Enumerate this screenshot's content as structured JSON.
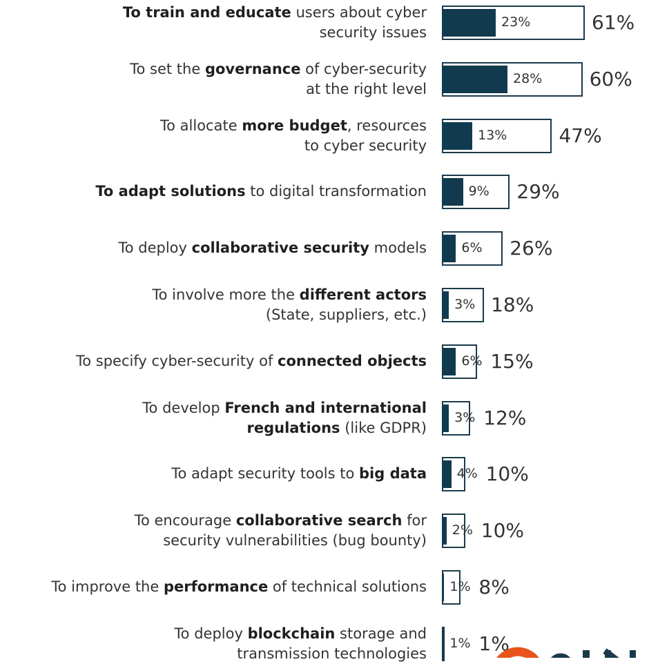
{
  "chart_data": {
    "type": "bar",
    "orientation": "horizontal",
    "categories": [
      [
        {
          "t": "To train and educate",
          "b": true
        },
        {
          "t": " users about cyber",
          "b": false
        },
        {
          "br": true
        },
        {
          "t": "security issues",
          "b": false
        }
      ],
      [
        {
          "t": "To set the ",
          "b": false
        },
        {
          "t": "governance",
          "b": true
        },
        {
          "t": " of cyber-security",
          "b": false
        },
        {
          "br": true
        },
        {
          "t": "at the right level",
          "b": false
        }
      ],
      [
        {
          "t": "To allocate ",
          "b": false
        },
        {
          "t": "more budget",
          "b": true
        },
        {
          "t": ", resources",
          "b": false
        },
        {
          "br": true
        },
        {
          "t": "to cyber security",
          "b": false
        }
      ],
      [
        {
          "t": "To adapt solutions",
          "b": true
        },
        {
          "t": " to digital transformation",
          "b": false
        }
      ],
      [
        {
          "t": "To deploy ",
          "b": false
        },
        {
          "t": "collaborative security",
          "b": true
        },
        {
          "t": " models",
          "b": false
        }
      ],
      [
        {
          "t": "To involve more the ",
          "b": false
        },
        {
          "t": "different actors",
          "b": true
        },
        {
          "br": true
        },
        {
          "t": "(State, suppliers, etc.)",
          "b": false
        }
      ],
      [
        {
          "t": "To specify cyber-security of ",
          "b": false
        },
        {
          "t": "connected objects",
          "b": true
        }
      ],
      [
        {
          "t": "To develop ",
          "b": false
        },
        {
          "t": "French and international",
          "b": true
        },
        {
          "br": true
        },
        {
          "t": "regulations",
          "b": true
        },
        {
          "t": "  (like GDPR)",
          "b": false
        }
      ],
      [
        {
          "t": "To adapt security tools to ",
          "b": false
        },
        {
          "t": "big data",
          "b": true
        }
      ],
      [
        {
          "t": "To encourage ",
          "b": false
        },
        {
          "t": "collaborative search",
          "b": true
        },
        {
          "t": " for",
          "b": false
        },
        {
          "br": true
        },
        {
          "t": "security vulnerabilities (bug bounty)",
          "b": false
        }
      ],
      [
        {
          "t": "To improve the ",
          "b": false
        },
        {
          "t": "performance",
          "b": true
        },
        {
          "t": " of technical solutions",
          "b": false
        }
      ],
      [
        {
          "t": "To deploy ",
          "b": false
        },
        {
          "t": "blockchain",
          "b": true
        },
        {
          "t": " storage and",
          "b": false
        },
        {
          "br": true
        },
        {
          "t": "transmission technologies",
          "b": false
        }
      ]
    ],
    "series": [
      {
        "values": [
          61,
          60,
          47,
          29,
          26,
          18,
          15,
          12,
          10,
          10,
          8,
          1
        ],
        "labels": [
          "61%",
          "60%",
          "47%",
          "29%",
          "26%",
          "18%",
          "15%",
          "12%",
          "10%",
          "10%",
          "8%",
          "1%"
        ]
      },
      {
        "values": [
          23,
          28,
          13,
          9,
          6,
          3,
          6,
          3,
          4,
          2,
          1,
          1
        ],
        "labels": [
          "23%",
          "28%",
          "13%",
          "9%",
          "6%",
          "3%",
          "6%",
          "3%",
          "4%",
          "2%",
          "1%",
          "1%"
        ]
      }
    ],
    "xlim": [
      0,
      61
    ],
    "colors": {
      "inner": "#123a4e",
      "outline": "#1b3a4b",
      "logo": "#e8541c",
      "logo_text": "#1b3a4b"
    }
  }
}
